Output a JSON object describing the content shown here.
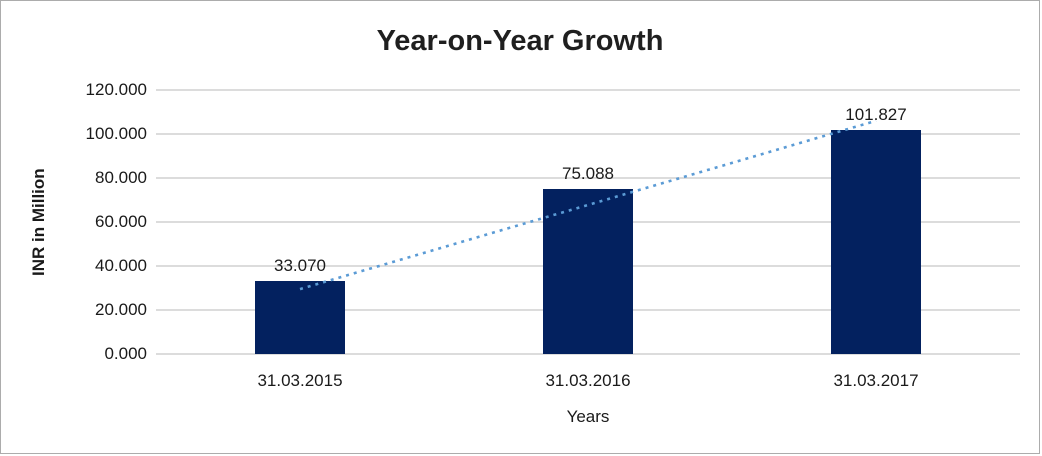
{
  "chart_data": {
    "type": "bar",
    "title": "Year-on-Year Growth",
    "xlabel": "Years",
    "ylabel": "INR in Million",
    "categories": [
      "31.03.2015",
      "31.03.2016",
      "31.03.2017"
    ],
    "values": [
      33.07,
      75.088,
      101.827
    ],
    "data_labels": [
      "33.070",
      "75.088",
      "101.827"
    ],
    "ylim": [
      0,
      120
    ],
    "y_tick_values": [
      0,
      20,
      40,
      60,
      80,
      100,
      120
    ],
    "y_tick_labels": [
      "0.000",
      "20.000",
      "40.000",
      "60.000",
      "80.000",
      "100.000",
      "120.000"
    ],
    "grid": true,
    "legend": "none",
    "colors": {
      "bar": "#03215F",
      "gridline": "#DCDCDC",
      "trendline": "#5B9BD5",
      "text": "#1A1A1A",
      "frame_border": "#ACACAC"
    },
    "trendline": {
      "type": "linear",
      "style": "dotted",
      "start_value": 29.5,
      "end_value": 106
    }
  }
}
